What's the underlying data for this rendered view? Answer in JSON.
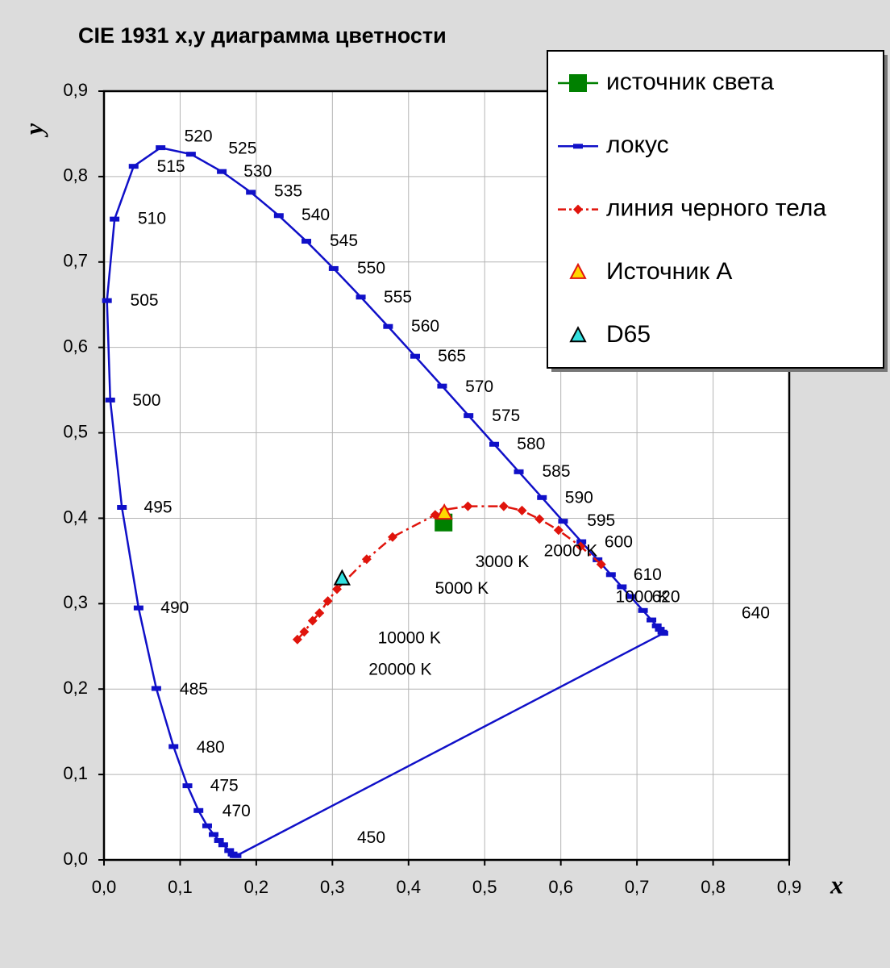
{
  "chart_data": {
    "type": "scatter",
    "title": "CIE 1931  x,y диаграмма цветности",
    "x_label": "x",
    "y_label": "y",
    "xlim": [
      0,
      0.9
    ],
    "ylim": [
      0,
      0.9
    ],
    "xticks": [
      {
        "value": 0,
        "label": "0,0"
      },
      {
        "value": 0.1,
        "label": "0,1"
      },
      {
        "value": 0.2,
        "label": "0,2"
      },
      {
        "value": 0.3,
        "label": "0,3"
      },
      {
        "value": 0.4,
        "label": "0,4"
      },
      {
        "value": 0.5,
        "label": "0,5"
      },
      {
        "value": 0.6,
        "label": "0,6"
      },
      {
        "value": 0.7,
        "label": "0,7"
      },
      {
        "value": 0.8,
        "label": "0,8"
      },
      {
        "value": 0.9,
        "label": "0,9"
      }
    ],
    "yticks": [
      {
        "value": 0,
        "label": "0,0"
      },
      {
        "value": 0.1,
        "label": "0,1"
      },
      {
        "value": 0.2,
        "label": "0,2"
      },
      {
        "value": 0.3,
        "label": "0,3"
      },
      {
        "value": 0.4,
        "label": "0,4"
      },
      {
        "value": 0.5,
        "label": "0,5"
      },
      {
        "value": 0.6,
        "label": "0,6"
      },
      {
        "value": 0.7,
        "label": "0,7"
      },
      {
        "value": 0.8,
        "label": "0,8"
      },
      {
        "value": 0.9,
        "label": "0,9"
      }
    ],
    "grid": true,
    "legend": "upper right",
    "series": [
      {
        "name": "источник света",
        "color": "#008000",
        "marker": "square",
        "line": "none",
        "x": [
          0.446
        ],
        "values": [
          0.395
        ]
      },
      {
        "name": "локус",
        "color": "#1010c8",
        "marker": "dash",
        "line": "closed",
        "x": [
          0.1741,
          0.1714,
          0.1689,
          0.1644,
          0.1566,
          0.151,
          0.144,
          0.1355,
          0.1241,
          0.1096,
          0.0913,
          0.0687,
          0.0454,
          0.0235,
          0.0082,
          0.0039,
          0.0139,
          0.0389,
          0.0743,
          0.1142,
          0.1547,
          0.1929,
          0.2296,
          0.2658,
          0.3016,
          0.3373,
          0.3731,
          0.4087,
          0.4441,
          0.4788,
          0.5125,
          0.5448,
          0.5752,
          0.6029,
          0.627,
          0.6482,
          0.6658,
          0.6801,
          0.6915,
          0.7079,
          0.719,
          0.726,
          0.73,
          0.7334,
          0.7347
        ],
        "values": [
          0.005,
          0.0051,
          0.0069,
          0.0109,
          0.0177,
          0.0227,
          0.0297,
          0.0399,
          0.0578,
          0.0868,
          0.1327,
          0.2007,
          0.295,
          0.4127,
          0.5384,
          0.6548,
          0.7502,
          0.812,
          0.8338,
          0.8262,
          0.8059,
          0.7816,
          0.7543,
          0.7243,
          0.6923,
          0.6589,
          0.6245,
          0.5896,
          0.5547,
          0.5202,
          0.4866,
          0.4544,
          0.4242,
          0.3965,
          0.3725,
          0.3514,
          0.334,
          0.3197,
          0.3083,
          0.292,
          0.2809,
          0.274,
          0.27,
          0.2666,
          0.2653
        ]
      },
      {
        "name": "линия черного тела",
        "color": "#e0140c",
        "marker": "diamond",
        "line": "dashed",
        "x": [
          0.653,
          0.626,
          0.597,
          0.572,
          0.549,
          0.525,
          0.478,
          0.447,
          0.435,
          0.379,
          0.345,
          0.306,
          0.294,
          0.283,
          0.274,
          0.263,
          0.254
        ],
        "values": [
          0.346,
          0.367,
          0.386,
          0.399,
          0.409,
          0.414,
          0.414,
          0.41,
          0.404,
          0.378,
          0.352,
          0.317,
          0.303,
          0.289,
          0.28,
          0.267,
          0.258
        ]
      },
      {
        "name": "Источник A",
        "color": "#ffd700",
        "edge": "#e0140c",
        "marker": "triangle",
        "line": "none",
        "x": [
          0.447
        ],
        "values": [
          0.406
        ]
      },
      {
        "name": "D65",
        "color": "#33e0e0",
        "edge": "#000000",
        "marker": "triangle",
        "line": "none",
        "x": [
          0.3127
        ],
        "values": [
          0.329
        ]
      }
    ],
    "annotations": [
      {
        "text": "520",
        "x": 0.124,
        "y": 0.846
      },
      {
        "text": "525",
        "x": 0.182,
        "y": 0.832
      },
      {
        "text": "530",
        "x": 0.202,
        "y": 0.805
      },
      {
        "text": "535",
        "x": 0.242,
        "y": 0.782
      },
      {
        "text": "540",
        "x": 0.278,
        "y": 0.754
      },
      {
        "text": "545",
        "x": 0.315,
        "y": 0.724
      },
      {
        "text": "550",
        "x": 0.351,
        "y": 0.692
      },
      {
        "text": "555",
        "x": 0.386,
        "y": 0.658
      },
      {
        "text": "560",
        "x": 0.422,
        "y": 0.624
      },
      {
        "text": "565",
        "x": 0.457,
        "y": 0.589
      },
      {
        "text": "570",
        "x": 0.493,
        "y": 0.553
      },
      {
        "text": "575",
        "x": 0.528,
        "y": 0.519
      },
      {
        "text": "580",
        "x": 0.561,
        "y": 0.486
      },
      {
        "text": "585",
        "x": 0.594,
        "y": 0.454
      },
      {
        "text": "590",
        "x": 0.624,
        "y": 0.423
      },
      {
        "text": "595",
        "x": 0.653,
        "y": 0.396
      },
      {
        "text": "600",
        "x": 0.676,
        "y": 0.371
      },
      {
        "text": "610",
        "x": 0.714,
        "y": 0.333
      },
      {
        "text": "620",
        "x": 0.738,
        "y": 0.307
      },
      {
        "text": "640",
        "x": 0.856,
        "y": 0.288
      },
      {
        "text": "515",
        "x": 0.088,
        "y": 0.811
      },
      {
        "text": "510",
        "x": 0.063,
        "y": 0.75
      },
      {
        "text": "505",
        "x": 0.053,
        "y": 0.654
      },
      {
        "text": "500",
        "x": 0.056,
        "y": 0.537
      },
      {
        "text": "495",
        "x": 0.071,
        "y": 0.412
      },
      {
        "text": "490",
        "x": 0.093,
        "y": 0.294
      },
      {
        "text": "485",
        "x": 0.118,
        "y": 0.199
      },
      {
        "text": "480",
        "x": 0.14,
        "y": 0.131
      },
      {
        "text": "475",
        "x": 0.158,
        "y": 0.086
      },
      {
        "text": "470",
        "x": 0.174,
        "y": 0.056
      },
      {
        "text": "450",
        "x": 0.351,
        "y": 0.025
      },
      {
        "text": "3000 K",
        "x": 0.523,
        "y": 0.348
      },
      {
        "text": "2000 K",
        "x": 0.613,
        "y": 0.361
      },
      {
        "text": "5000 K",
        "x": 0.47,
        "y": 0.317
      },
      {
        "text": "10000 K",
        "x": 0.401,
        "y": 0.259
      },
      {
        "text": "20000 K",
        "x": 0.389,
        "y": 0.222
      },
      {
        "text": "1000 K",
        "x": 0.707,
        "y": 0.307
      }
    ]
  }
}
